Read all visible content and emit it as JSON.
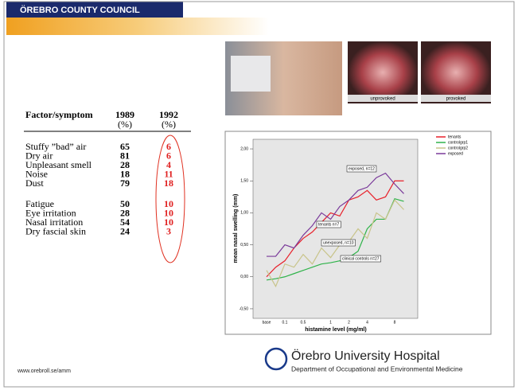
{
  "header": {
    "title": "ÖREBRO COUNTY COUNCIL"
  },
  "table": {
    "header": [
      "Factor/symptom",
      "1989",
      "1992"
    ],
    "units": [
      "(%)",
      "(%)"
    ],
    "groups": [
      [
        [
          "Stuffy ”bad” air",
          "65",
          "6"
        ],
        [
          "Dry air",
          "81",
          "6"
        ],
        [
          "Unpleasant smell",
          "28",
          "4"
        ],
        [
          "Noise",
          "18",
          "11"
        ],
        [
          "Dust",
          "79",
          "18"
        ]
      ],
      [
        [
          "Fatigue",
          "50",
          "10"
        ],
        [
          "Eye irritation",
          "28",
          "10"
        ],
        [
          "Nasal irritation",
          "54",
          "10"
        ],
        [
          "Dry fascial skin",
          "24",
          "3"
        ]
      ]
    ]
  },
  "images": {
    "captions": [
      "unprovoked",
      "provoked"
    ]
  },
  "chart_data": {
    "type": "line",
    "x_label": "histamine level (mg/ml)",
    "y_label": "mean nasal swelling (mm)",
    "categories": [
      "base",
      null,
      "0.1",
      null,
      "0.5",
      null,
      null,
      "1",
      null,
      "2",
      null,
      "4",
      null,
      null,
      "8",
      null
    ],
    "series": [
      {
        "name": "tenants",
        "color": "#e8202a",
        "values": [
          0.0,
          0.15,
          0.25,
          0.45,
          0.6,
          0.7,
          0.85,
          1.0,
          0.95,
          1.2,
          1.25,
          1.35,
          1.2,
          1.25,
          1.5,
          1.5
        ]
      },
      {
        "name": "controlgrp1",
        "color": "#2fb34a",
        "values": [
          -0.05,
          -0.03,
          0.0,
          0.05,
          0.1,
          0.15,
          0.2,
          0.22,
          0.25,
          0.3,
          0.4,
          0.75,
          0.9,
          0.9,
          1.22,
          1.18
        ]
      },
      {
        "name": "controlgrp2",
        "color": "#c8c48a",
        "values": [
          0.1,
          -0.15,
          0.2,
          0.15,
          0.35,
          0.2,
          0.45,
          0.3,
          0.5,
          0.55,
          0.75,
          0.6,
          1.0,
          0.9,
          1.2,
          1.05
        ]
      },
      {
        "name": "exposed",
        "color": "#7a3a9a",
        "values": [
          0.32,
          0.32,
          0.5,
          0.45,
          0.65,
          0.8,
          1.0,
          0.9,
          1.1,
          1.2,
          1.35,
          1.4,
          1.55,
          1.62,
          1.45,
          1.3
        ]
      }
    ],
    "ylim": [
      -0.65,
      2.15
    ],
    "yticks": [
      {
        "value": -0.5,
        "label": "-0,50"
      },
      {
        "value": 0,
        "label": "0,00"
      },
      {
        "value": 0.5,
        "label": "0,50"
      },
      {
        "value": 1,
        "label": "1,00"
      },
      {
        "value": 1.5,
        "label": "1,50"
      },
      {
        "value": 2,
        "label": "2,00"
      }
    ],
    "annotations": [
      "exposed, n=12",
      "tenants n=7",
      "unexposed, n=10",
      "clinical controls n=27"
    ],
    "legend": "top-right"
  },
  "footer": {
    "url": "www.orebroll.se/amm",
    "logo_title": "Örebro University Hospital",
    "logo_subtitle": "Department of Occupational and Environmental Medicine"
  }
}
